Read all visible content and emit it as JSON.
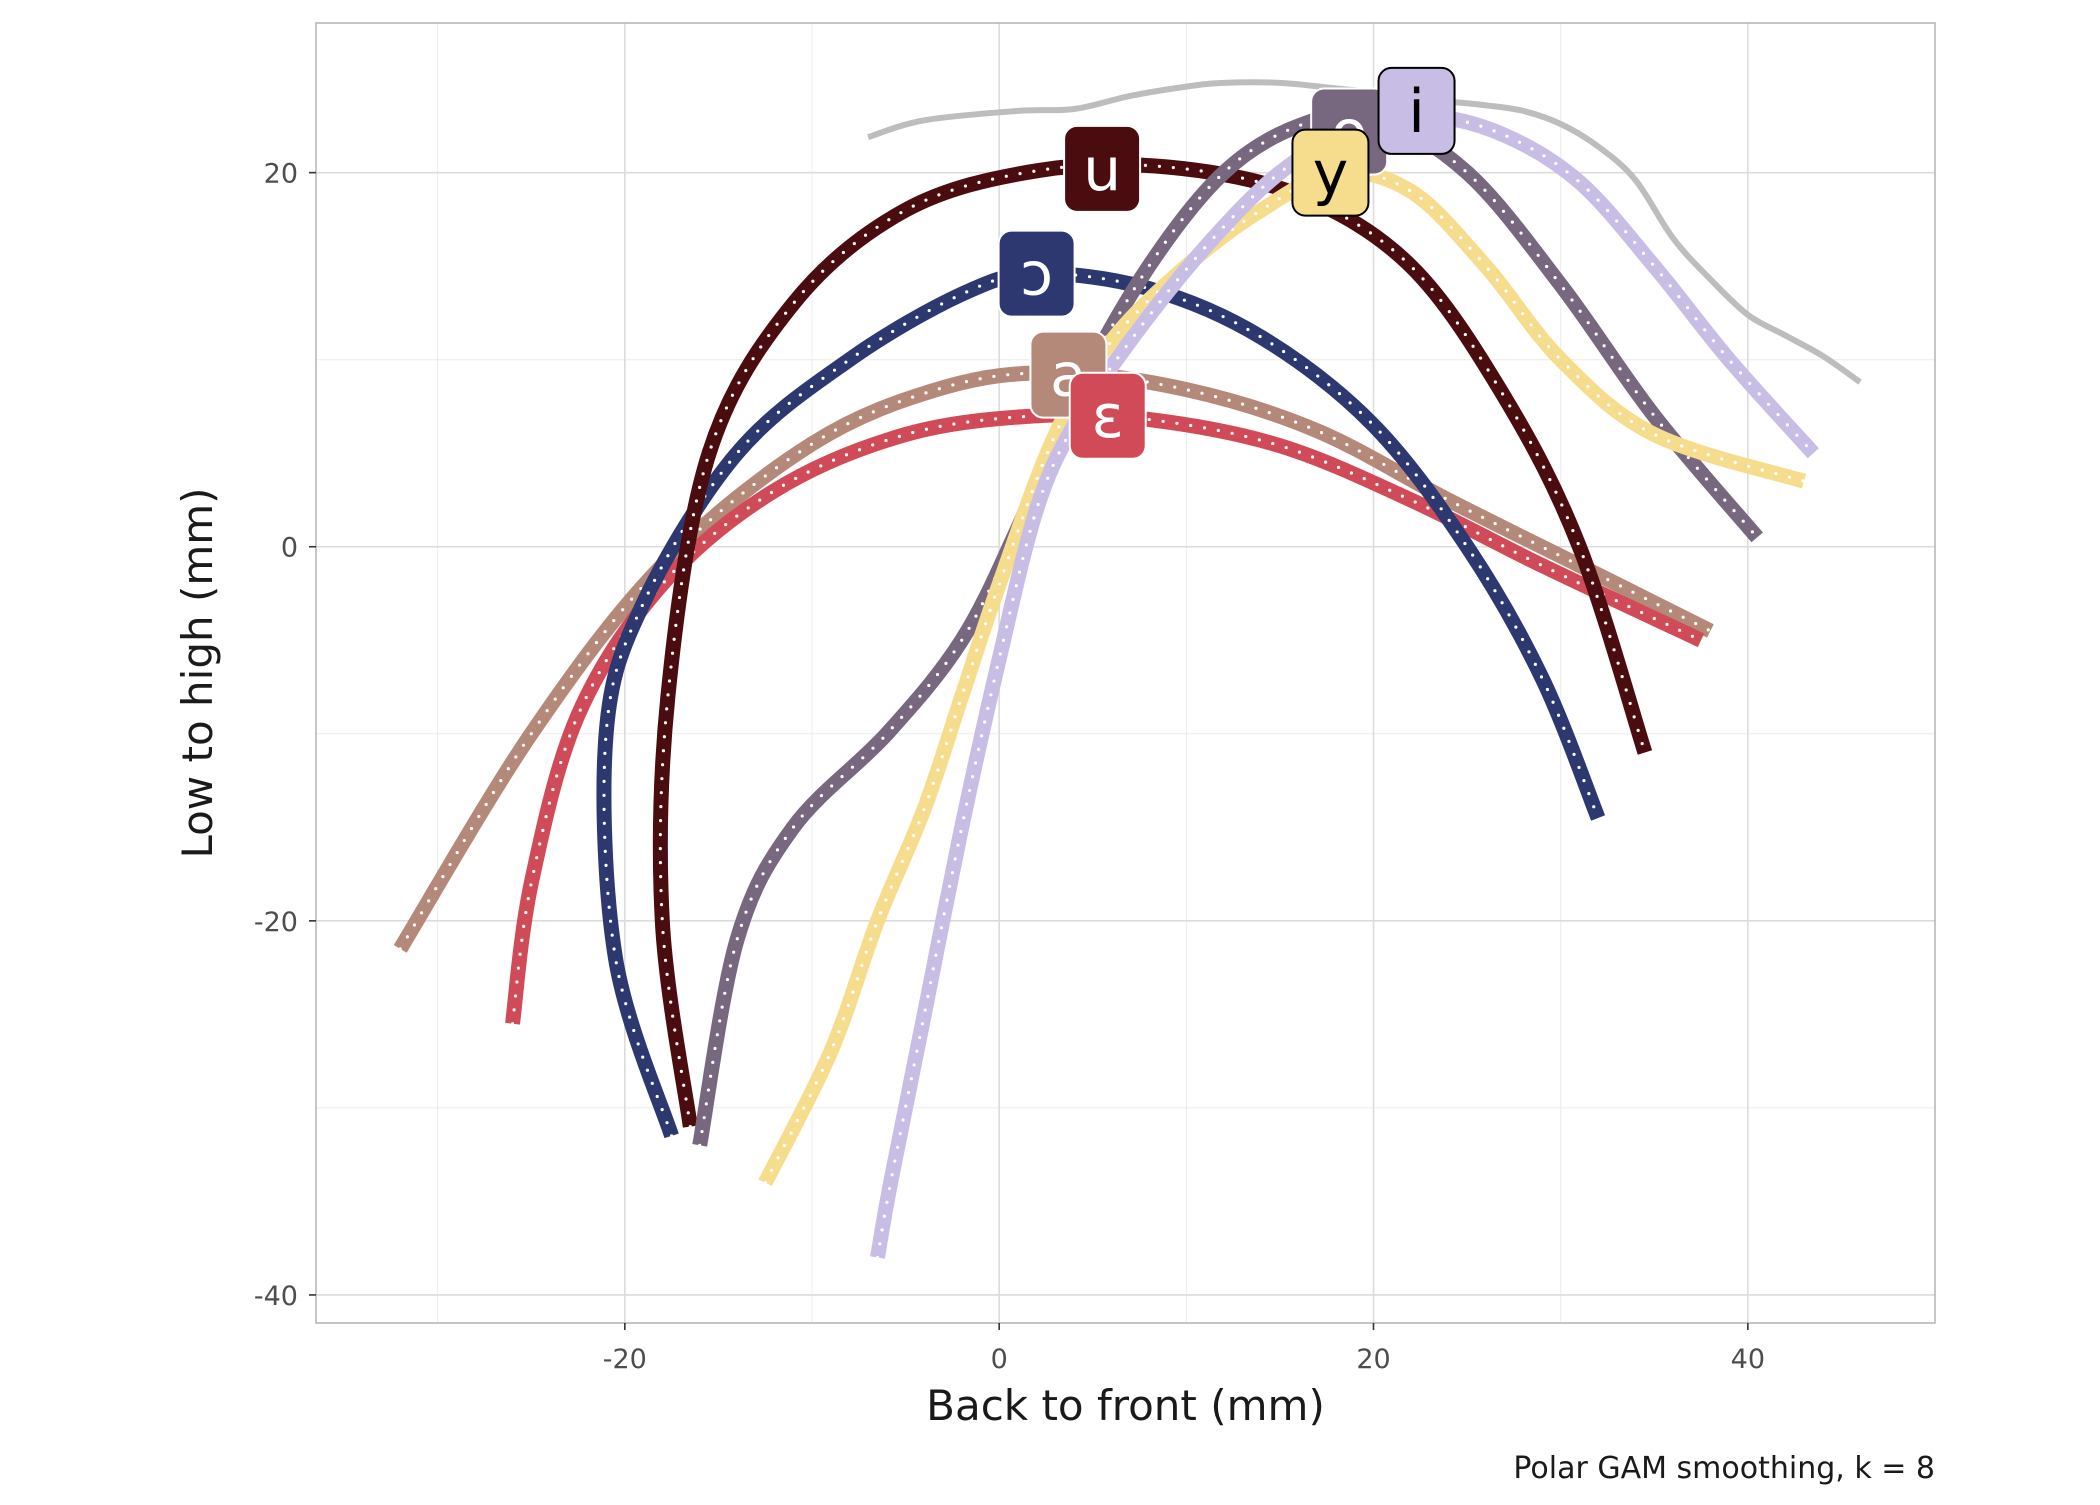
{
  "chart_data": {
    "type": "line",
    "xlabel": "Back to front (mm)",
    "ylabel": "Low to high (mm)",
    "caption": "Polar GAM smoothing, k = 8",
    "xlim": [
      -36.5,
      50
    ],
    "ylim": [
      -41.5,
      28
    ],
    "xticks": [
      -20,
      0,
      20,
      40
    ],
    "yticks": [
      -40,
      -20,
      0,
      20
    ],
    "xtick_labels": [
      "-20",
      "0",
      "20",
      "40"
    ],
    "ytick_labels": [
      "-40",
      "-20",
      "0",
      "20"
    ],
    "grid": true,
    "palate": {
      "color": "#bdbdbd",
      "x": [
        -7,
        -4,
        1,
        4,
        7,
        10,
        12,
        15,
        18,
        20,
        22,
        24,
        26,
        28,
        30,
        32,
        34,
        36,
        38,
        40,
        42,
        44,
        46
      ],
      "y": [
        21.9,
        22.8,
        23.3,
        23.4,
        24.1,
        24.6,
        24.8,
        24.8,
        24.5,
        24.3,
        24.0,
        23.8,
        23.6,
        23.3,
        22.6,
        21.4,
        19.6,
        16.5,
        14.3,
        12.4,
        11.3,
        10.2,
        8.8
      ]
    },
    "series": [
      {
        "name": "a",
        "color": "#b5897a",
        "label_pos": [
          3.7,
          9.2
        ],
        "x": [
          -32,
          -25,
          -18,
          -10,
          -3,
          3,
          10,
          17,
          24,
          31,
          38
        ],
        "y": [
          -21.5,
          -10,
          -1,
          5.5,
          8.5,
          9.3,
          8.4,
          6.2,
          2.5,
          -1.0,
          -4.5
        ]
      },
      {
        "name": "ɛ",
        "color": "#d04b57",
        "label_pos": [
          5.8,
          7.0
        ],
        "x": [
          -26,
          -25,
          -22.5,
          -18,
          -12,
          -5,
          2,
          8,
          15,
          22,
          29,
          37.5
        ],
        "y": [
          -25.5,
          -18,
          -9,
          -2,
          3,
          6,
          7,
          6.8,
          5.4,
          2.5,
          -1.0,
          -5
        ]
      },
      {
        "name": "ɔ",
        "color": "#2d3870",
        "label_pos": [
          2.0,
          14.6
        ],
        "x": [
          -17.5,
          -20.5,
          -21,
          -19,
          -14,
          -8,
          -2,
          2,
          8,
          14,
          20,
          25,
          29,
          32
        ],
        "y": [
          -31.5,
          -22,
          -10,
          -3,
          5,
          10,
          13.5,
          14.6,
          13.8,
          11.2,
          6.5,
          0,
          -7,
          -14.5
        ]
      },
      {
        "name": "u",
        "color": "#4a0c0f",
        "label_pos": [
          5.5,
          20.2
        ],
        "x": [
          -16.5,
          -18,
          -17.7,
          -15.5,
          -11,
          -5,
          2,
          9,
          16,
          22,
          27,
          31,
          34.5
        ],
        "y": [
          -31,
          -20,
          -8,
          5,
          13,
          18,
          20.1,
          20.3,
          18.8,
          15,
          8,
          0,
          -11
        ]
      },
      {
        "name": "o",
        "color": "#77687f",
        "label_pos": [
          18.7,
          22.2
        ],
        "x": [
          -16,
          -14,
          -11,
          -6,
          -2,
          1,
          4,
          8,
          12,
          16,
          20,
          25,
          30,
          35,
          40.5
        ],
        "y": [
          -32,
          -21,
          -15,
          -10,
          -5,
          1,
          8,
          15,
          20,
          22.5,
          23,
          20,
          14,
          7,
          0.5
        ]
      },
      {
        "name": "y",
        "color": "#f6dd8e",
        "label_pos": [
          17.7,
          20.0
        ],
        "x": [
          -12.5,
          -9,
          -6.5,
          -4,
          -2,
          0,
          3,
          6,
          10,
          14,
          18,
          22,
          26,
          30,
          35,
          43
        ],
        "y": [
          -34,
          -27,
          -20,
          -14,
          -8,
          -2,
          6,
          11,
          15,
          18,
          20,
          19,
          15,
          10,
          6,
          3.5
        ]
      },
      {
        "name": "i",
        "color": "#c8bde5",
        "label_pos": [
          22.3,
          23.3
        ],
        "x": [
          -6.5,
          -5.8,
          -4,
          -2,
          0,
          2,
          4,
          7,
          11,
          15,
          19,
          23,
          27,
          31,
          35,
          39,
          43.5
        ],
        "y": [
          -38,
          -34,
          -25,
          -15,
          -6,
          2,
          6.5,
          11,
          16,
          20,
          22.3,
          23,
          22,
          19.5,
          15,
          10,
          5
        ]
      }
    ]
  }
}
